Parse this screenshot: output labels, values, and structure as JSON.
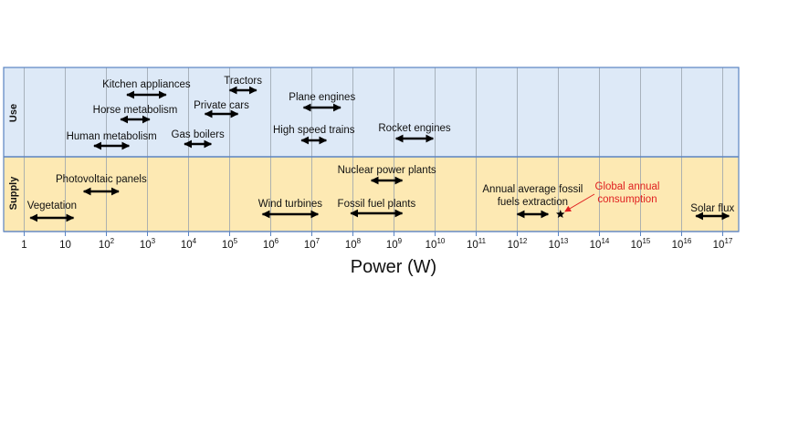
{
  "axis": {
    "title": "Power (W)",
    "ticks": [
      {
        "base": "1",
        "exp": ""
      },
      {
        "base": "10",
        "exp": ""
      },
      {
        "base": "10",
        "exp": "2"
      },
      {
        "base": "10",
        "exp": "3"
      },
      {
        "base": "10",
        "exp": "4"
      },
      {
        "base": "10",
        "exp": "5"
      },
      {
        "base": "10",
        "exp": "6"
      },
      {
        "base": "10",
        "exp": "7"
      },
      {
        "base": "10",
        "exp": "8"
      },
      {
        "base": "10",
        "exp": "9"
      },
      {
        "base": "10",
        "exp": "10"
      },
      {
        "base": "10",
        "exp": "11"
      },
      {
        "base": "10",
        "exp": "12"
      },
      {
        "base": "10",
        "exp": "13"
      },
      {
        "base": "10",
        "exp": "14"
      },
      {
        "base": "10",
        "exp": "15"
      },
      {
        "base": "10",
        "exp": "16"
      },
      {
        "base": "10",
        "exp": "17"
      }
    ]
  },
  "bands": {
    "use": {
      "label": "Use",
      "color": "#dde9f7"
    },
    "supply": {
      "label": "Supply",
      "color": "#fde9b3"
    },
    "border_color": "#5b84c2"
  },
  "use_items": [
    {
      "label": "Kitchen appliances",
      "log_from": 2.5,
      "log_to": 3.45
    },
    {
      "label": "Tractors",
      "log_from": 5.0,
      "log_to": 5.65
    },
    {
      "label": "Horse metabolism",
      "log_from": 2.35,
      "log_to": 3.05
    },
    {
      "label": "Private cars",
      "log_from": 4.4,
      "log_to": 5.2
    },
    {
      "label": "Plane engines",
      "log_from": 6.8,
      "log_to": 7.7
    },
    {
      "label": "Gas boilers",
      "log_from": 3.9,
      "log_to": 4.55
    },
    {
      "label": "High speed trains",
      "log_from": 6.75,
      "log_to": 7.35
    },
    {
      "label": "Human metabolism",
      "log_from": 1.7,
      "log_to": 2.55
    },
    {
      "label": "Rocket engines",
      "log_from": 9.05,
      "log_to": 9.95
    }
  ],
  "supply_items": [
    {
      "label": "Nuclear power plants",
      "log_from": 8.45,
      "log_to": 9.2
    },
    {
      "label": "Photovoltaic panels",
      "log_from": 1.45,
      "log_to": 2.3
    },
    {
      "label": "Annual average fossil fuels extraction",
      "lines": [
        "Annual average fossil",
        "fuels extraction"
      ],
      "log_from": 12.0,
      "log_to": 12.75
    },
    {
      "label": "Wind turbines",
      "log_from": 5.8,
      "log_to": 7.15
    },
    {
      "label": "Fossil fuel plants",
      "log_from": 7.95,
      "log_to": 9.2
    },
    {
      "label": "Vegetation",
      "log_from": 0.15,
      "log_to": 1.2
    },
    {
      "label": "Solar flux",
      "log_from": 16.35,
      "log_to": 17.15
    }
  ],
  "marker": {
    "label_lines": [
      "Global annual",
      "consumption"
    ],
    "log_value": 13.05,
    "color": "#e02020"
  },
  "chart_data": {
    "type": "range",
    "xlabel": "Power (W)",
    "x_scale": "log",
    "xlim": [
      1,
      100000000000000000
    ],
    "categories": [
      "Use",
      "Supply"
    ],
    "ranges": [
      {
        "category": "Use",
        "name": "Kitchen appliances",
        "min": 316,
        "max": 2818
      },
      {
        "category": "Use",
        "name": "Tractors",
        "min": 100000,
        "max": 446684
      },
      {
        "category": "Use",
        "name": "Horse metabolism",
        "min": 224,
        "max": 1122
      },
      {
        "category": "Use",
        "name": "Private cars",
        "min": 25119,
        "max": 158489
      },
      {
        "category": "Use",
        "name": "Plane engines",
        "min": 6309573,
        "max": 50118723
      },
      {
        "category": "Use",
        "name": "Gas boilers",
        "min": 7943,
        "max": 35481
      },
      {
        "category": "Use",
        "name": "High speed trains",
        "min": 5623413,
        "max": 22387211
      },
      {
        "category": "Use",
        "name": "Human metabolism",
        "min": 50,
        "max": 355
      },
      {
        "category": "Use",
        "name": "Rocket engines",
        "min": 1122018454,
        "max": 8912509381
      },
      {
        "category": "Supply",
        "name": "Nuclear power plants",
        "min": 281838293,
        "max": 1584893192
      },
      {
        "category": "Supply",
        "name": "Photovoltaic panels",
        "min": 28,
        "max": 200
      },
      {
        "category": "Supply",
        "name": "Annual average fossil fuels extraction",
        "min": 1000000000000,
        "max": 5623413251903
      },
      {
        "category": "Supply",
        "name": "Wind turbines",
        "min": 630957,
        "max": 14125375
      },
      {
        "category": "Supply",
        "name": "Fossil fuel plants",
        "min": 89125094,
        "max": 1584893192
      },
      {
        "category": "Supply",
        "name": "Vegetation",
        "min": 1.4,
        "max": 16
      },
      {
        "category": "Supply",
        "name": "Solar flux",
        "min": 22387211385683396,
        "max": 141253754462275430
      }
    ],
    "points": [
      {
        "category": "Supply",
        "name": "Global annual consumption",
        "x": 11220184543019
      }
    ]
  }
}
